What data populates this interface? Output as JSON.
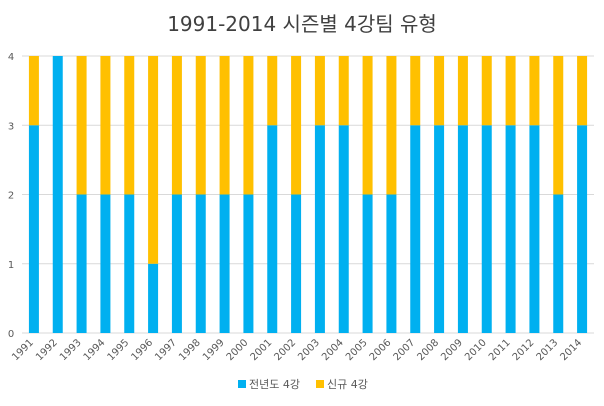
{
  "chart_data": {
    "type": "bar",
    "stacked": true,
    "title": "1991-2014 시즌별 4강팀 유형",
    "xlabel": "",
    "ylabel": "",
    "ylim": [
      0,
      4
    ],
    "yticks": [
      0,
      1,
      2,
      3,
      4
    ],
    "grid": true,
    "legend_position": "bottom",
    "categories": [
      "1991",
      "1992",
      "1993",
      "1994",
      "1995",
      "1996",
      "1997",
      "1998",
      "1999",
      "2000",
      "2001",
      "2002",
      "2003",
      "2004",
      "2005",
      "2006",
      "2007",
      "2008",
      "2009",
      "2010",
      "2011",
      "2012",
      "2013",
      "2014"
    ],
    "series": [
      {
        "name": "전년도 4강",
        "color": "#00B0F0",
        "values": [
          3,
          4,
          2,
          2,
          2,
          1,
          2,
          2,
          2,
          2,
          3,
          2,
          3,
          3,
          2,
          2,
          3,
          3,
          3,
          3,
          3,
          3,
          2,
          3
        ]
      },
      {
        "name": "신규 4강",
        "color": "#FFC000",
        "values": [
          1,
          0,
          2,
          2,
          2,
          3,
          2,
          2,
          2,
          2,
          1,
          2,
          1,
          1,
          2,
          2,
          1,
          1,
          1,
          1,
          1,
          1,
          2,
          1
        ]
      }
    ]
  }
}
